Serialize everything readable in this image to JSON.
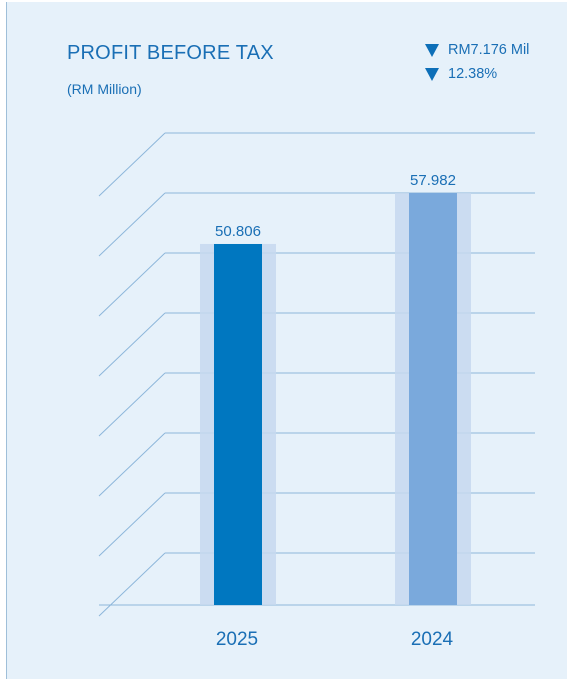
{
  "header": {
    "title": "PROFIT BEFORE TAX",
    "subtitle": "(RM Million)"
  },
  "changes": [
    {
      "icon": "triangle-down-icon",
      "text": "RM7.176 Mil"
    },
    {
      "icon": "triangle-down-icon",
      "text": "12.38%"
    }
  ],
  "colors": {
    "background": "#e6f1fa",
    "text": "#1a6fb5",
    "grid": "#8db6da",
    "bar_2025": "#0077c0",
    "bar_2024": "#7aa9dc",
    "bar_shadow": "#c6d8ee",
    "arrow": "#0d6fb8"
  },
  "chart_data": {
    "type": "bar",
    "title": "PROFIT BEFORE TAX",
    "subtitle": "(RM Million)",
    "categories": [
      "2025",
      "2024"
    ],
    "values": [
      50.806,
      57.982
    ],
    "data_labels": [
      "50.806",
      "57.982"
    ],
    "ylim": [
      0,
      70
    ],
    "grid": true,
    "gridline_count": 8,
    "perspective_floor": true
  }
}
